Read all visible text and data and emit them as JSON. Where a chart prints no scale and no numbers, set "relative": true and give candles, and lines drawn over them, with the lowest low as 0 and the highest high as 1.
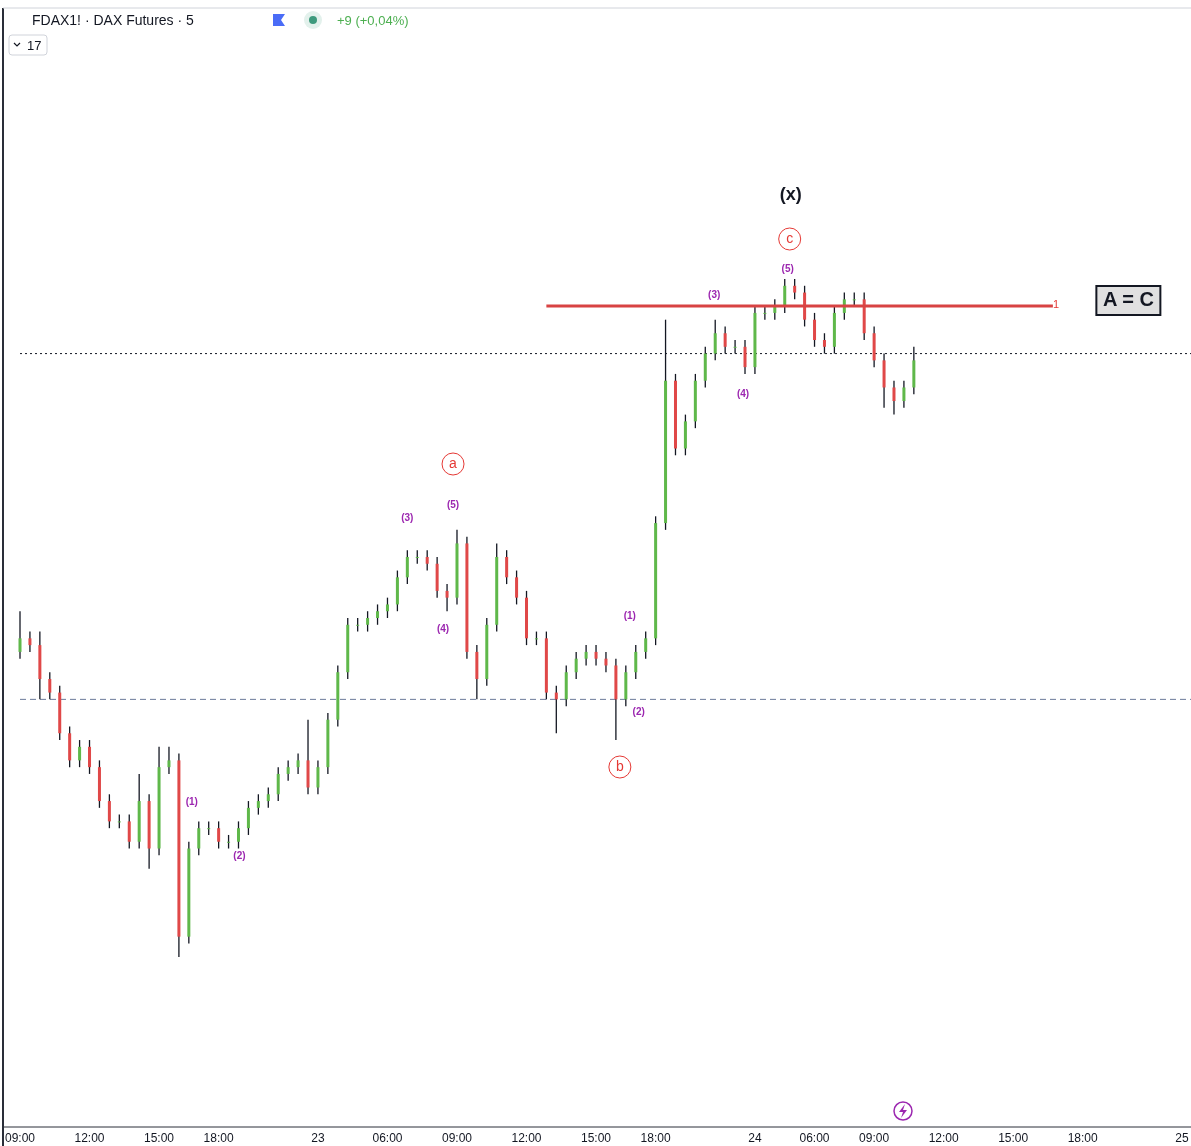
{
  "chart_data": {
    "type": "candlestick",
    "title": "FDAX1! · DAX Futures · 5",
    "subtitle": "+9 (+0,04%)",
    "relative": true,
    "categories": [
      "09:00",
      null,
      null,
      null,
      null,
      null,
      null,
      "12:00",
      null,
      null,
      null,
      null,
      null,
      null,
      "15:00",
      null,
      null,
      null,
      null,
      null,
      "18:00",
      null,
      null,
      null,
      null,
      null,
      null,
      null,
      null,
      null,
      "23",
      null,
      null,
      null,
      null,
      null,
      null,
      "06:00",
      null,
      null,
      null,
      null,
      null,
      null,
      "09:00",
      null,
      null,
      null,
      null,
      null,
      null,
      "12:00",
      null,
      null,
      null,
      null,
      null,
      null,
      "15:00",
      null,
      null,
      null,
      null,
      null,
      "18:00",
      null,
      null,
      null,
      null,
      null,
      null,
      null,
      null,
      null,
      "24",
      null,
      null,
      null,
      null,
      null,
      "06:00",
      null,
      null,
      null,
      null,
      null,
      "09:00",
      null,
      null,
      null,
      null,
      null,
      null,
      "12:00",
      null,
      null,
      null,
      null,
      null,
      null,
      "15:00",
      null,
      null,
      null,
      null,
      null,
      null,
      "18:00",
      null,
      null,
      null,
      null,
      null,
      null,
      null,
      null,
      null,
      "25"
    ],
    "ohlc": [
      [
        0.45,
        0.51,
        0.44,
        0.47
      ],
      [
        0.47,
        0.48,
        0.45,
        0.46
      ],
      [
        0.46,
        0.48,
        0.38,
        0.41
      ],
      [
        0.41,
        0.42,
        0.38,
        0.39
      ],
      [
        0.39,
        0.4,
        0.32,
        0.33
      ],
      [
        0.33,
        0.34,
        0.28,
        0.29
      ],
      [
        0.29,
        0.32,
        0.28,
        0.31
      ],
      [
        0.31,
        0.32,
        0.27,
        0.28
      ],
      [
        0.28,
        0.29,
        0.22,
        0.23
      ],
      [
        0.23,
        0.24,
        0.19,
        0.2
      ],
      [
        0.2,
        0.21,
        0.19,
        0.2
      ],
      [
        0.2,
        0.21,
        0.16,
        0.17
      ],
      [
        0.17,
        0.27,
        0.16,
        0.23
      ],
      [
        0.23,
        0.24,
        0.13,
        0.16
      ],
      [
        0.16,
        0.31,
        0.15,
        0.28
      ],
      [
        0.28,
        0.31,
        0.27,
        0.29
      ],
      [
        0.29,
        0.3,
        0.0,
        0.03
      ],
      [
        0.03,
        0.17,
        0.02,
        0.16
      ],
      [
        0.16,
        0.2,
        0.15,
        0.19
      ],
      [
        0.19,
        0.2,
        0.18,
        0.19
      ],
      [
        0.19,
        0.2,
        0.16,
        0.17
      ],
      [
        0.17,
        0.18,
        0.16,
        0.17
      ],
      [
        0.17,
        0.2,
        0.16,
        0.19
      ],
      [
        0.19,
        0.23,
        0.18,
        0.22
      ],
      [
        0.22,
        0.24,
        0.21,
        0.23
      ],
      [
        0.23,
        0.25,
        0.22,
        0.24
      ],
      [
        0.24,
        0.28,
        0.23,
        0.27
      ],
      [
        0.27,
        0.29,
        0.26,
        0.28
      ],
      [
        0.28,
        0.3,
        0.27,
        0.29
      ],
      [
        0.29,
        0.35,
        0.24,
        0.25
      ],
      [
        0.25,
        0.29,
        0.24,
        0.28
      ],
      [
        0.28,
        0.36,
        0.27,
        0.35
      ],
      [
        0.35,
        0.43,
        0.34,
        0.42
      ],
      [
        0.42,
        0.5,
        0.41,
        0.49
      ],
      [
        0.49,
        0.5,
        0.48,
        0.49
      ],
      [
        0.49,
        0.51,
        0.48,
        0.5
      ],
      [
        0.5,
        0.52,
        0.49,
        0.51
      ],
      [
        0.51,
        0.53,
        0.5,
        0.52
      ],
      [
        0.52,
        0.57,
        0.51,
        0.56
      ],
      [
        0.56,
        0.6,
        0.55,
        0.59
      ],
      [
        0.59,
        0.6,
        0.58,
        0.59
      ],
      [
        0.59,
        0.6,
        0.57,
        0.58
      ],
      [
        0.58,
        0.59,
        0.53,
        0.54
      ],
      [
        0.54,
        0.55,
        0.51,
        0.53
      ],
      [
        0.53,
        0.63,
        0.52,
        0.61
      ],
      [
        0.61,
        0.62,
        0.44,
        0.45
      ],
      [
        0.45,
        0.46,
        0.38,
        0.41
      ],
      [
        0.41,
        0.5,
        0.4,
        0.49
      ],
      [
        0.49,
        0.61,
        0.48,
        0.59
      ],
      [
        0.59,
        0.6,
        0.55,
        0.56
      ],
      [
        0.56,
        0.57,
        0.52,
        0.53
      ],
      [
        0.53,
        0.54,
        0.46,
        0.47
      ],
      [
        0.47,
        0.48,
        0.46,
        0.47
      ],
      [
        0.47,
        0.48,
        0.38,
        0.39
      ],
      [
        0.39,
        0.4,
        0.33,
        0.38
      ],
      [
        0.38,
        0.43,
        0.37,
        0.42
      ],
      [
        0.42,
        0.45,
        0.41,
        0.44
      ],
      [
        0.44,
        0.46,
        0.43,
        0.45
      ],
      [
        0.45,
        0.46,
        0.43,
        0.44
      ],
      [
        0.44,
        0.45,
        0.42,
        0.43
      ],
      [
        0.43,
        0.44,
        0.32,
        0.38
      ],
      [
        0.38,
        0.43,
        0.37,
        0.42
      ],
      [
        0.42,
        0.46,
        0.41,
        0.45
      ],
      [
        0.45,
        0.48,
        0.44,
        0.47
      ],
      [
        0.47,
        0.65,
        0.46,
        0.64
      ],
      [
        0.64,
        0.94,
        0.63,
        0.85
      ],
      [
        0.85,
        0.86,
        0.74,
        0.75
      ],
      [
        0.75,
        0.8,
        0.74,
        0.79
      ],
      [
        0.79,
        0.86,
        0.78,
        0.85
      ],
      [
        0.85,
        0.9,
        0.84,
        0.89
      ],
      [
        0.89,
        0.94,
        0.88,
        0.92
      ],
      [
        0.92,
        0.93,
        0.89,
        0.9
      ],
      [
        0.9,
        0.91,
        0.89,
        0.9
      ],
      [
        0.9,
        0.91,
        0.86,
        0.87
      ],
      [
        0.87,
        0.96,
        0.86,
        0.95
      ],
      [
        0.95,
        0.96,
        0.94,
        0.95
      ],
      [
        0.95,
        0.97,
        0.94,
        0.96
      ],
      [
        0.96,
        1.0,
        0.95,
        0.99
      ],
      [
        0.99,
        1.0,
        0.97,
        0.98
      ],
      [
        0.98,
        0.99,
        0.93,
        0.94
      ],
      [
        0.94,
        0.95,
        0.9,
        0.91
      ],
      [
        0.91,
        0.92,
        0.89,
        0.9
      ],
      [
        0.9,
        0.96,
        0.89,
        0.95
      ],
      [
        0.95,
        0.98,
        0.94,
        0.97
      ],
      [
        0.97,
        0.98,
        0.96,
        0.97
      ],
      [
        0.97,
        0.98,
        0.91,
        0.92
      ],
      [
        0.92,
        0.93,
        0.87,
        0.88
      ],
      [
        0.88,
        0.89,
        0.81,
        0.84
      ],
      [
        0.84,
        0.85,
        0.8,
        0.82
      ],
      [
        0.82,
        0.85,
        0.81,
        0.84
      ],
      [
        0.84,
        0.9,
        0.83,
        0.88
      ],
      null,
      null,
      null,
      null,
      null,
      null,
      null,
      null,
      null,
      null,
      null,
      null,
      null,
      null,
      null,
      null,
      null,
      null,
      null,
      null,
      null,
      null,
      null,
      null,
      null,
      null,
      null
    ],
    "series": [
      {
        "type": "line",
        "color": "#d84343",
        "values": [
          null,
          null,
          null,
          null,
          null,
          null,
          null,
          null,
          null,
          null,
          null,
          null,
          null,
          null,
          null,
          null,
          null,
          null,
          null,
          null,
          null,
          null,
          null,
          null,
          null,
          null,
          null,
          null,
          null,
          null,
          null,
          null,
          null,
          null,
          null,
          null,
          null,
          null,
          null,
          null,
          null,
          null,
          null,
          null,
          null,
          null,
          null,
          null,
          null,
          null,
          null,
          null,
          null,
          0.96,
          0.96,
          0.96,
          0.96,
          0.96,
          0.96,
          0.96,
          0.96,
          0.96,
          0.96,
          0.96,
          0.96,
          0.96,
          0.96,
          0.96,
          0.96,
          0.96,
          0.96,
          0.96,
          0.96,
          0.96,
          0.96,
          0.96,
          0.96,
          0.96,
          0.96,
          0.96,
          0.96,
          0.96,
          0.96,
          0.96,
          0.96,
          0.96,
          0.96,
          0.96,
          0.96,
          0.96,
          0.96,
          0.96,
          0.96,
          0.96,
          0.96,
          0.96,
          0.96,
          0.96,
          0.96,
          0.96,
          0.96,
          0.96,
          0.96,
          0.96,
          0.96,
          null,
          null,
          null,
          null,
          null,
          null,
          null,
          null,
          null,
          null,
          null,
          null,
          null
        ]
      }
    ],
    "ref_lines": [
      {
        "axis": "y",
        "value": 0.89,
        "color": "#131722",
        "line_style": "dotted"
      },
      {
        "axis": "y",
        "value": 0.38,
        "color": "#6b7a99",
        "line_style": "dashed"
      }
    ],
    "tick_labels": "x",
    "annotations": [
      "17",
      "(x)",
      "c",
      "a",
      "b",
      "(5)",
      "(3)",
      "(4)",
      "(3)",
      "(5)",
      "(4)",
      "(1)",
      "(2)",
      "(1)",
      "(2)",
      "1",
      "A = C"
    ]
  }
}
